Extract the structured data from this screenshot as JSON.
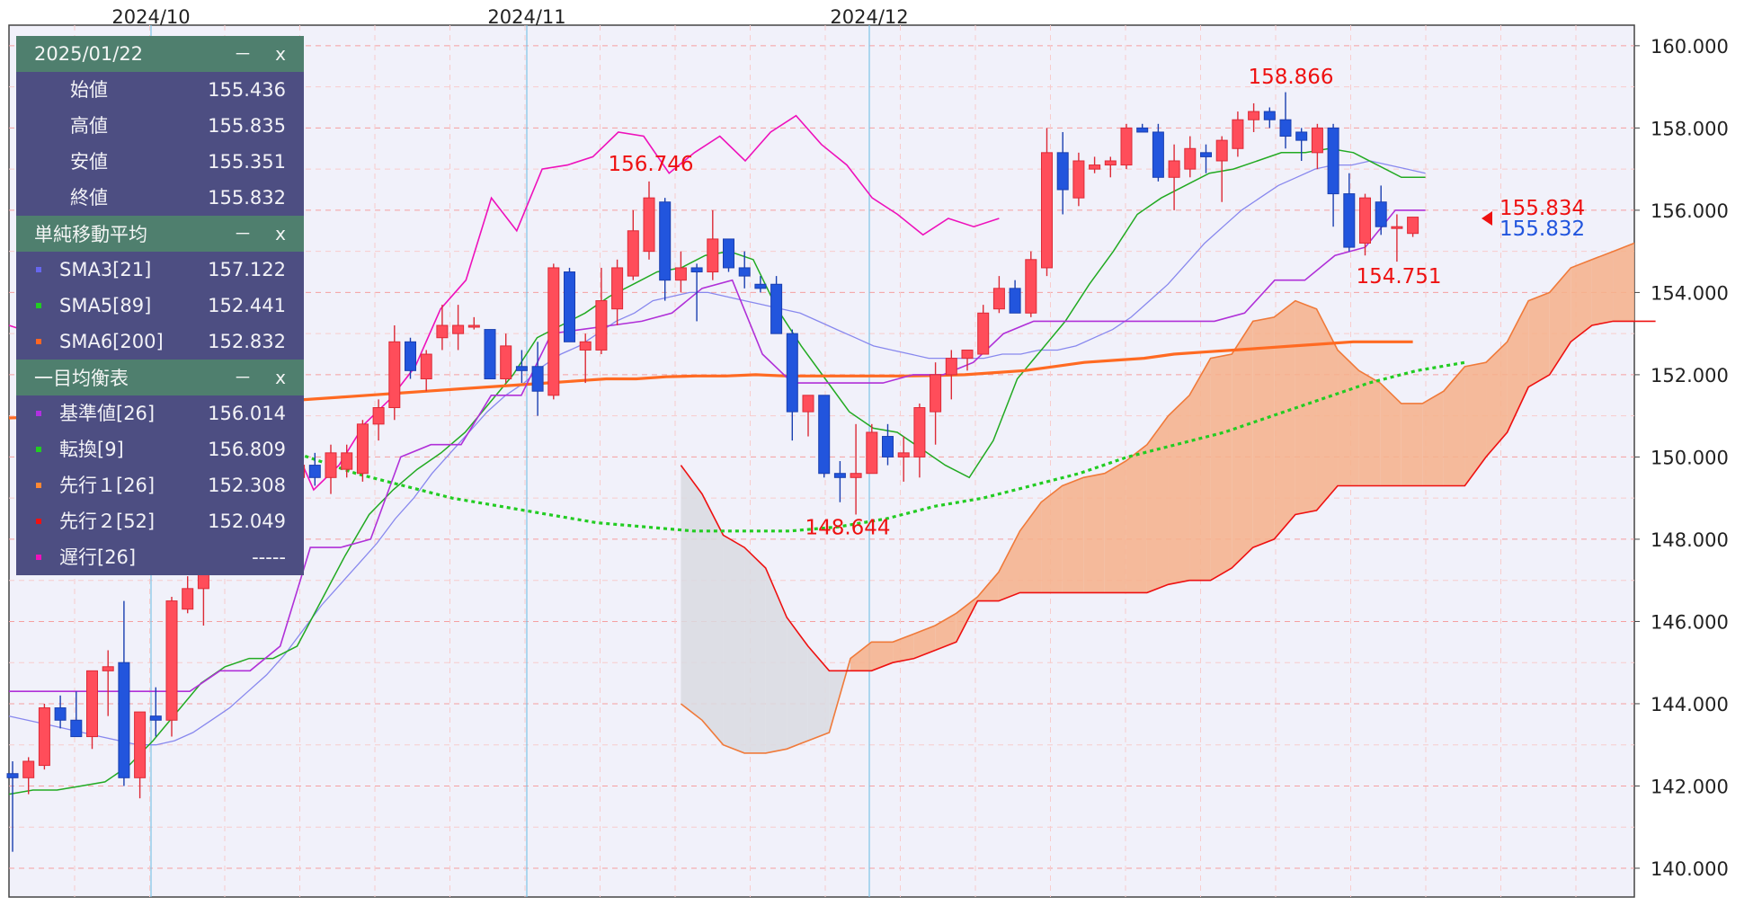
{
  "chart_data": {
    "type": "candlestick",
    "x_ticks": [
      "2024/10",
      "2024/11",
      "2024/12"
    ],
    "y_ticks": [
      "160.000",
      "158.000",
      "156.000",
      "154.000",
      "152.000",
      "150.000",
      "148.000",
      "146.000",
      "144.000",
      "142.000",
      "140.000"
    ],
    "ylim": [
      139.3,
      160.5
    ],
    "grid": true,
    "candles": [
      {
        "o": 142.3,
        "h": 142.6,
        "l": 140.4,
        "c": 142.2
      },
      {
        "o": 142.2,
        "h": 142.7,
        "l": 141.8,
        "c": 142.6
      },
      {
        "o": 142.5,
        "h": 144.0,
        "l": 142.4,
        "c": 143.9
      },
      {
        "o": 143.9,
        "h": 144.2,
        "l": 143.4,
        "c": 143.6
      },
      {
        "o": 143.6,
        "h": 144.3,
        "l": 143.2,
        "c": 143.2
      },
      {
        "o": 143.2,
        "h": 144.8,
        "l": 142.9,
        "c": 144.8
      },
      {
        "o": 144.8,
        "h": 145.3,
        "l": 143.7,
        "c": 144.9
      },
      {
        "o": 145.0,
        "h": 146.5,
        "l": 142.0,
        "c": 142.2
      },
      {
        "o": 142.2,
        "h": 143.8,
        "l": 141.7,
        "c": 143.8
      },
      {
        "o": 143.7,
        "h": 144.4,
        "l": 143.2,
        "c": 143.6
      },
      {
        "o": 143.6,
        "h": 146.6,
        "l": 143.2,
        "c": 146.5
      },
      {
        "o": 146.3,
        "h": 147.1,
        "l": 146.2,
        "c": 146.8
      },
      {
        "o": 146.8,
        "h": 149.0,
        "l": 145.9,
        "c": 148.7
      },
      {
        "o": 148.7,
        "h": 149.3,
        "l": 148.4,
        "c": 149.2
      },
      {
        "o": 149.2,
        "h": 149.7,
        "l": 148.6,
        "c": 148.9
      },
      {
        "o": 148.8,
        "h": 149.8,
        "l": 148.4,
        "c": 149.6
      },
      {
        "o": 149.6,
        "h": 149.9,
        "l": 148.8,
        "c": 149.0
      },
      {
        "o": 149.0,
        "h": 149.6,
        "l": 148.7,
        "c": 149.5
      },
      {
        "o": 149.5,
        "h": 150.0,
        "l": 149.1,
        "c": 149.8
      },
      {
        "o": 149.8,
        "h": 150.1,
        "l": 149.3,
        "c": 149.5
      },
      {
        "o": 149.5,
        "h": 150.3,
        "l": 149.1,
        "c": 150.1
      },
      {
        "o": 149.7,
        "h": 150.3,
        "l": 149.5,
        "c": 150.1
      },
      {
        "o": 149.6,
        "h": 150.9,
        "l": 149.4,
        "c": 150.8
      },
      {
        "o": 150.8,
        "h": 151.4,
        "l": 150.4,
        "c": 151.2
      },
      {
        "o": 151.2,
        "h": 153.2,
        "l": 150.9,
        "c": 152.8
      },
      {
        "o": 152.8,
        "h": 152.9,
        "l": 151.9,
        "c": 152.1
      },
      {
        "o": 151.9,
        "h": 152.6,
        "l": 151.6,
        "c": 152.5
      },
      {
        "o": 152.9,
        "h": 153.7,
        "l": 152.6,
        "c": 153.2
      },
      {
        "o": 153.0,
        "h": 153.7,
        "l": 152.6,
        "c": 153.2
      },
      {
        "o": 153.2,
        "h": 153.4,
        "l": 153.1,
        "c": 153.2
      },
      {
        "o": 153.1,
        "h": 153.1,
        "l": 151.9,
        "c": 151.9
      },
      {
        "o": 151.9,
        "h": 153.0,
        "l": 151.8,
        "c": 152.7
      },
      {
        "o": 152.2,
        "h": 152.6,
        "l": 151.8,
        "c": 152.1
      },
      {
        "o": 152.2,
        "h": 152.8,
        "l": 151.0,
        "c": 151.6
      },
      {
        "o": 151.5,
        "h": 154.7,
        "l": 151.4,
        "c": 154.6
      },
      {
        "o": 154.5,
        "h": 154.6,
        "l": 152.8,
        "c": 152.8
      },
      {
        "o": 152.6,
        "h": 153.0,
        "l": 151.8,
        "c": 152.8
      },
      {
        "o": 152.6,
        "h": 154.6,
        "l": 152.5,
        "c": 153.8
      },
      {
        "o": 153.6,
        "h": 154.8,
        "l": 153.2,
        "c": 154.6
      },
      {
        "o": 154.4,
        "h": 156.0,
        "l": 154.3,
        "c": 155.5
      },
      {
        "o": 155.0,
        "h": 156.7,
        "l": 154.8,
        "c": 156.3
      },
      {
        "o": 156.2,
        "h": 156.3,
        "l": 153.8,
        "c": 154.3
      },
      {
        "o": 154.3,
        "h": 155.0,
        "l": 154.0,
        "c": 154.6
      },
      {
        "o": 154.6,
        "h": 154.7,
        "l": 153.3,
        "c": 154.5
      },
      {
        "o": 154.5,
        "h": 156.0,
        "l": 154.3,
        "c": 155.3
      },
      {
        "o": 155.3,
        "h": 155.3,
        "l": 154.5,
        "c": 154.6
      },
      {
        "o": 154.6,
        "h": 155.0,
        "l": 154.1,
        "c": 154.4
      },
      {
        "o": 154.2,
        "h": 154.4,
        "l": 154.0,
        "c": 154.1
      },
      {
        "o": 154.2,
        "h": 154.4,
        "l": 153.0,
        "c": 153.0
      },
      {
        "o": 153.0,
        "h": 153.1,
        "l": 150.4,
        "c": 151.1
      },
      {
        "o": 151.1,
        "h": 151.5,
        "l": 150.5,
        "c": 151.5
      },
      {
        "o": 151.5,
        "h": 151.5,
        "l": 149.5,
        "c": 149.6
      },
      {
        "o": 149.6,
        "h": 149.9,
        "l": 148.9,
        "c": 149.5
      },
      {
        "o": 149.5,
        "h": 150.8,
        "l": 148.6,
        "c": 149.6
      },
      {
        "o": 149.6,
        "h": 150.8,
        "l": 149.6,
        "c": 150.6
      },
      {
        "o": 150.5,
        "h": 150.8,
        "l": 149.8,
        "c": 150.0
      },
      {
        "o": 150.0,
        "h": 150.5,
        "l": 149.4,
        "c": 150.1
      },
      {
        "o": 150.0,
        "h": 151.3,
        "l": 149.5,
        "c": 151.2
      },
      {
        "o": 151.1,
        "h": 152.3,
        "l": 150.3,
        "c": 152.0
      },
      {
        "o": 152.0,
        "h": 152.6,
        "l": 151.4,
        "c": 152.4
      },
      {
        "o": 152.4,
        "h": 152.6,
        "l": 152.1,
        "c": 152.6
      },
      {
        "o": 152.5,
        "h": 153.7,
        "l": 152.5,
        "c": 153.5
      },
      {
        "o": 153.6,
        "h": 154.4,
        "l": 153.5,
        "c": 154.1
      },
      {
        "o": 154.1,
        "h": 154.3,
        "l": 153.5,
        "c": 153.5
      },
      {
        "o": 153.5,
        "h": 155.0,
        "l": 153.4,
        "c": 154.8
      },
      {
        "o": 154.6,
        "h": 158.0,
        "l": 154.4,
        "c": 157.4
      },
      {
        "o": 157.4,
        "h": 157.9,
        "l": 155.9,
        "c": 156.5
      },
      {
        "o": 156.3,
        "h": 157.4,
        "l": 156.1,
        "c": 157.2
      },
      {
        "o": 157.0,
        "h": 157.3,
        "l": 156.9,
        "c": 157.1
      },
      {
        "o": 157.1,
        "h": 157.3,
        "l": 156.8,
        "c": 157.2
      },
      {
        "o": 157.1,
        "h": 158.1,
        "l": 157.0,
        "c": 158.0
      },
      {
        "o": 158.0,
        "h": 158.1,
        "l": 157.9,
        "c": 157.9
      },
      {
        "o": 157.9,
        "h": 158.1,
        "l": 156.7,
        "c": 156.8
      },
      {
        "o": 156.8,
        "h": 157.6,
        "l": 156.0,
        "c": 157.2
      },
      {
        "o": 157.0,
        "h": 157.8,
        "l": 156.8,
        "c": 157.5
      },
      {
        "o": 157.4,
        "h": 157.6,
        "l": 156.9,
        "c": 157.3
      },
      {
        "o": 157.2,
        "h": 157.8,
        "l": 156.2,
        "c": 157.7
      },
      {
        "o": 157.5,
        "h": 158.4,
        "l": 157.3,
        "c": 158.2
      },
      {
        "o": 158.2,
        "h": 158.6,
        "l": 157.9,
        "c": 158.4
      },
      {
        "o": 158.4,
        "h": 158.5,
        "l": 158.0,
        "c": 158.2
      },
      {
        "o": 158.2,
        "h": 158.87,
        "l": 157.5,
        "c": 157.8
      },
      {
        "o": 157.9,
        "h": 158.0,
        "l": 157.2,
        "c": 157.7
      },
      {
        "o": 157.4,
        "h": 158.1,
        "l": 157.0,
        "c": 158.0
      },
      {
        "o": 158.0,
        "h": 158.1,
        "l": 155.6,
        "c": 156.4
      },
      {
        "o": 156.4,
        "h": 156.9,
        "l": 155.0,
        "c": 155.1
      },
      {
        "o": 155.2,
        "h": 156.4,
        "l": 154.9,
        "c": 156.3
      },
      {
        "o": 156.2,
        "h": 156.6,
        "l": 155.4,
        "c": 155.6
      },
      {
        "o": 155.6,
        "h": 155.9,
        "l": 154.75,
        "c": 155.6
      },
      {
        "o": 155.436,
        "h": 155.835,
        "l": 155.351,
        "c": 155.832
      }
    ],
    "series": [
      {
        "name": "SMA3[21]",
        "color": "#8888ee",
        "values": [
          143.7,
          143.6,
          143.5,
          143.4,
          143.3,
          143.2,
          143.1,
          143.0,
          143.0,
          143.1,
          143.3,
          143.6,
          143.9,
          144.3,
          144.7,
          145.2,
          145.8,
          146.4,
          146.9,
          147.4,
          147.9,
          148.5,
          149.0,
          149.6,
          150.1,
          150.6,
          151.1,
          151.5,
          151.8,
          152.2,
          152.5,
          152.7,
          153.0,
          153.3,
          153.5,
          153.8,
          153.9,
          154.0,
          154.0,
          153.9,
          153.8,
          153.7,
          153.6,
          153.5,
          153.3,
          153.1,
          152.9,
          152.7,
          152.6,
          152.5,
          152.4,
          152.4,
          152.4,
          152.4,
          152.5,
          152.5,
          152.6,
          152.6,
          152.7,
          152.9,
          153.1,
          153.4,
          153.8,
          154.2,
          154.7,
          155.2,
          155.6,
          156.0,
          156.3,
          156.6,
          156.8,
          157.0,
          157.1,
          157.1,
          157.2,
          157.1,
          157.0,
          156.9
        ]
      },
      {
        "name": "SMA5[89]",
        "color": "#22aa22",
        "values": [
          141.8,
          141.9,
          141.9,
          142.0,
          142.1,
          142.5,
          143.1,
          143.8,
          144.5,
          144.9,
          145.1,
          145.1,
          145.4,
          146.5,
          147.6,
          148.6,
          149.2,
          149.7,
          150.1,
          150.6,
          151.3,
          152.0,
          152.9,
          153.2,
          153.5,
          153.9,
          154.2,
          154.5,
          154.6,
          154.9,
          155.0,
          154.8,
          153.6,
          152.7,
          151.9,
          151.1,
          150.7,
          150.6,
          150.2,
          149.8,
          149.5,
          150.4,
          151.9,
          152.6,
          153.3,
          154.2,
          155.0,
          155.9,
          156.3,
          156.6,
          156.9,
          157.0,
          157.2,
          157.4,
          157.4,
          157.5,
          157.4,
          157.1,
          156.8,
          156.8
        ]
      },
      {
        "name": "SMA6[200]",
        "color": "#ff6a22",
        "values": [
          150.95,
          150.97,
          151.0,
          151.05,
          151.1,
          151.15,
          151.2,
          151.25,
          151.3,
          151.35,
          151.4,
          151.45,
          151.5,
          151.55,
          151.6,
          151.65,
          151.7,
          151.75,
          151.8,
          151.85,
          151.9,
          151.9,
          151.95,
          151.97,
          151.97,
          152.0,
          151.97,
          151.97,
          151.97,
          151.97,
          151.97,
          151.98,
          152.0,
          152.05,
          152.1,
          152.2,
          152.3,
          152.35,
          152.4,
          152.5,
          152.55,
          152.6,
          152.65,
          152.7,
          152.75,
          152.8,
          152.8,
          152.8
        ]
      },
      {
        "name": "基準値[26]",
        "color": "#b030d8",
        "values": [
          144.3,
          144.3,
          144.3,
          144.3,
          144.3,
          144.3,
          144.3,
          144.8,
          144.8,
          145.4,
          147.8,
          147.8,
          148.0,
          150.0,
          150.3,
          150.3,
          151.5,
          151.5,
          153.0,
          153.1,
          153.2,
          153.3,
          153.5,
          154.1,
          154.3,
          152.5,
          151.8,
          151.8,
          151.8,
          151.8,
          152.0,
          152.0,
          152.3,
          153.0,
          153.3,
          153.3,
          153.3,
          153.3,
          153.3,
          153.3,
          153.3,
          153.5,
          154.3,
          154.3,
          154.9,
          155.1,
          156.0,
          156.0
        ]
      },
      {
        "name": "転換[9]",
        "color": "#22cc22",
        "values": [
          152.3,
          151.9,
          151.5,
          151.1,
          150.8,
          150.4,
          150.0,
          149.6,
          149.3,
          149.0,
          148.8,
          148.6,
          148.4,
          148.3,
          148.2,
          148.2,
          148.2,
          148.3,
          148.5,
          148.8,
          149.0,
          149.3,
          149.6,
          150.0,
          150.3,
          150.6,
          151.0,
          151.4,
          151.8,
          152.1,
          152.3
        ]
      },
      {
        "name": "先行１[26]",
        "color": "#f07a3a",
        "values": [
          144.0,
          143.6,
          143.0,
          142.8,
          142.8,
          142.9,
          143.1,
          143.3,
          145.1,
          145.5,
          145.5,
          145.7,
          145.9,
          146.2,
          146.6,
          147.2,
          148.2,
          148.9,
          149.3,
          149.5,
          149.6,
          149.9,
          150.3,
          151.0,
          151.5,
          152.4,
          152.5,
          153.3,
          153.4,
          153.8,
          153.6,
          152.6,
          152.1,
          151.8,
          151.3,
          151.3,
          151.6,
          152.2,
          152.3,
          152.8,
          153.8,
          154.0,
          154.6,
          154.8,
          155.0,
          155.2
        ]
      },
      {
        "name": "先行２[52]",
        "color": "#ee1111",
        "values": [
          149.8,
          149.1,
          148.1,
          147.8,
          147.3,
          146.1,
          145.4,
          144.8,
          144.8,
          144.8,
          145.0,
          145.1,
          145.3,
          145.5,
          146.5,
          146.5,
          146.7,
          146.7,
          146.7,
          146.7,
          146.7,
          146.7,
          146.7,
          146.9,
          147.0,
          147.0,
          147.3,
          147.8,
          148.0,
          148.6,
          148.7,
          149.3,
          149.3,
          149.3,
          149.3,
          149.3,
          149.3,
          149.3,
          150.0,
          150.6,
          151.7,
          152.0,
          152.8,
          153.2,
          153.3,
          153.3,
          153.3
        ]
      },
      {
        "name": "遅行[26]",
        "color": "#ee11bb",
        "values": [
          153.2,
          153.0,
          153.1,
          153.1,
          154.6,
          154.7,
          155.4,
          154.6,
          154.4,
          152.3,
          150.6,
          150.6,
          149.2,
          149.8,
          150.8,
          151.4,
          152.2,
          153.6,
          154.3,
          156.3,
          155.5,
          157.0,
          157.1,
          157.3,
          157.9,
          157.8,
          156.9,
          157.4,
          157.8,
          157.2,
          157.9,
          158.3,
          157.6,
          157.1,
          156.3,
          155.9,
          155.4,
          155.8,
          155.6,
          155.8
        ]
      }
    ],
    "price_labels": [
      {
        "text": "158.866",
        "value": 158.866
      },
      {
        "text": "156.746",
        "value": 156.746
      },
      {
        "text": "154.751",
        "value": 154.751
      },
      {
        "text": "148.644",
        "value": 148.644
      }
    ],
    "current_price": {
      "bid": "155.834",
      "ask": "155.832",
      "bid_color": "#ee1111",
      "ask_color": "#2255dd"
    },
    "colors": {
      "up": "#ff4d5a",
      "down": "#2255dd",
      "plot_bg": "#f1f1fa",
      "cloud_bull": "#f6b08a",
      "cloud_bear": "#d9dae0",
      "grid_major": "#f5a0a0",
      "time_line": "#7fc4e6"
    }
  },
  "panel": {
    "ohlc": {
      "date": "2025/01/22",
      "rows": [
        {
          "label": "始値",
          "value": "155.436"
        },
        {
          "label": "高値",
          "value": "155.835"
        },
        {
          "label": "安値",
          "value": "155.351"
        },
        {
          "label": "終値",
          "value": "155.832"
        }
      ]
    },
    "sma": {
      "title": "単純移動平均",
      "rows": [
        {
          "label": "SMA3[21]",
          "value": "157.122",
          "color": "#6666ee"
        },
        {
          "label": "SMA5[89]",
          "value": "152.441",
          "color": "#22cc22"
        },
        {
          "label": "SMA6[200]",
          "value": "152.832",
          "color": "#ff6622"
        }
      ]
    },
    "ichimoku": {
      "title": "一目均衡表",
      "rows": [
        {
          "label": "基準値[26]",
          "value": "156.014",
          "color": "#b030e0"
        },
        {
          "label": "転換[9]",
          "value": "156.809",
          "color": "#22cc22"
        },
        {
          "label": "先行１[26]",
          "value": "152.308",
          "color": "#ff8833"
        },
        {
          "label": "先行２[52]",
          "value": "152.049",
          "color": "#ee1111"
        },
        {
          "label": "遅行[26]",
          "value": "-----",
          "color": "#ee11bb"
        }
      ]
    },
    "minimize_symbol": "－",
    "close_symbol": "x"
  }
}
